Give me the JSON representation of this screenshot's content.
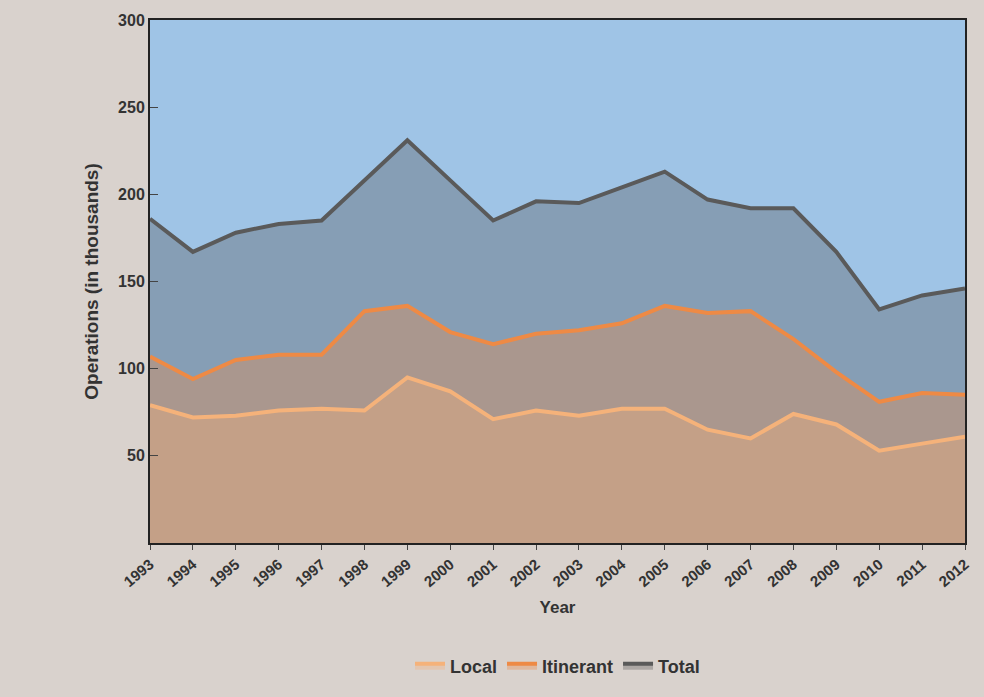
{
  "chart_data": {
    "type": "line",
    "x_label": "Year",
    "y_label": "Operations (in thousands)",
    "categories": [
      "1993",
      "1994",
      "1995",
      "1996",
      "1997",
      "1998",
      "1999",
      "2000",
      "2001",
      "2002",
      "2003",
      "2004",
      "2005",
      "2006",
      "2007",
      "2008",
      "2009",
      "2010",
      "2011",
      "2012"
    ],
    "series": [
      {
        "name": "Local",
        "color": "#f5b27a",
        "values": [
          79,
          72,
          73,
          76,
          77,
          76,
          95,
          87,
          71,
          76,
          73,
          77,
          77,
          65,
          60,
          74,
          68,
          53,
          57,
          61
        ]
      },
      {
        "name": "Itinerant",
        "color": "#ee8a45",
        "values": [
          107,
          94,
          105,
          108,
          108,
          133,
          136,
          121,
          114,
          120,
          122,
          126,
          136,
          132,
          133,
          117,
          98,
          81,
          86,
          85
        ]
      },
      {
        "name": "Total",
        "color": "#5a5a5a",
        "values": [
          186,
          167,
          178,
          183,
          185,
          208,
          231,
          208,
          185,
          196,
          195,
          204,
          213,
          197,
          192,
          192,
          167,
          134,
          142,
          146
        ]
      }
    ],
    "ylim": [
      0,
      300
    ],
    "yticks": [
      50,
      100,
      150,
      200,
      250,
      300
    ],
    "grid": false,
    "legend": "bottom"
  }
}
